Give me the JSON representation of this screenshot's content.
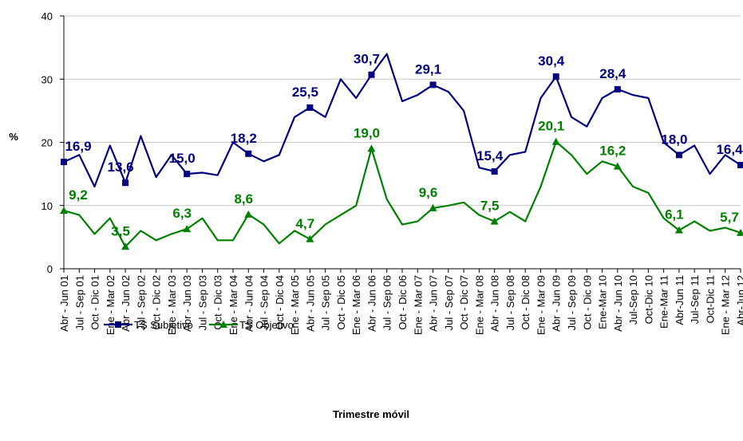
{
  "chart_data": {
    "type": "line",
    "x_label": "Trimestre móvil",
    "y_label": "%",
    "categories": [
      "Abr - Jun 01",
      "Jul - Sep 01",
      "Oct - Dic 01",
      "Ene - Mar 02",
      "Abr - Jun 02",
      "Jul - Sep 02",
      "Oct - Dic 02",
      "Ene - Mar 03",
      "Abr - Jun 03",
      "Jul - Sep 03",
      "Oct - Dic 03",
      "Ene - Mar 04",
      "Abr - Jun 04",
      "Jul - Sep 04",
      "Oct - Dic 04",
      "Ene - Mar 05",
      "Abr - Jun 05",
      "Jul - Sep 05",
      "Oct - Dic 05",
      "Ene - Mar 06",
      "Abr - Jun 06",
      "Jul - Sep 06",
      "Oct - Dic 06",
      "Ene - Mar 07",
      "Abr - Jun 07",
      "Jul - Sep 07",
      "Oct - Dic 07",
      "Ene - Mar 08",
      "Abr - Jun 08",
      "Jul - Sep 08",
      "Oct - Dic 08",
      "Ene - Mar 09",
      "Abr - Jun 09",
      "Jul - Sep 09",
      "Oct - Dic 09",
      "Ene-Mar 10",
      "Abr - Jun 10",
      "Jul-Sep 10",
      "Oct-Dic 10",
      "Ene-Mar 11",
      "Abr-Jun 11",
      "Jul-Sep 11",
      "Oct-Dic 11",
      "Ene - Mar 12",
      "Abr-Jun 12"
    ],
    "series": [
      {
        "name": "TS Subjetivo",
        "color": "#000080",
        "marker": "square",
        "values": [
          16.9,
          18,
          13,
          19.5,
          13.6,
          21,
          14.5,
          18,
          15.0,
          15.2,
          14.8,
          20,
          18.2,
          17,
          18,
          24,
          25.5,
          24,
          30,
          27,
          30.7,
          34,
          26.5,
          27.5,
          29.1,
          28,
          25,
          16,
          15.4,
          18,
          18.5,
          27,
          30.4,
          24,
          22.5,
          27,
          28.4,
          27.5,
          27,
          20,
          18.0,
          19.5,
          15,
          18,
          16.4
        ],
        "value_labels": [
          "16,9",
          null,
          null,
          null,
          "13,6",
          null,
          null,
          null,
          "15,0",
          null,
          null,
          null,
          "18,2",
          null,
          null,
          null,
          "25,5",
          null,
          null,
          null,
          "30,7",
          null,
          null,
          null,
          "29,1",
          null,
          null,
          null,
          "15,4",
          null,
          null,
          null,
          "30,4",
          null,
          null,
          null,
          "28,4",
          null,
          null,
          null,
          "18,0",
          null,
          null,
          null,
          "16,4"
        ]
      },
      {
        "name": "TS Objetivo",
        "color": "#008000",
        "marker": "triangle",
        "values": [
          9.2,
          8.5,
          5.5,
          8,
          3.5,
          6,
          4.5,
          5.5,
          6.3,
          8,
          4.5,
          4.5,
          8.6,
          7,
          4,
          6,
          4.7,
          7,
          8.5,
          10,
          19.0,
          11,
          7,
          7.5,
          9.6,
          10,
          10.5,
          8.5,
          7.5,
          9,
          7.5,
          13,
          20.1,
          18,
          15,
          17,
          16.2,
          13,
          12,
          8,
          6.1,
          7.5,
          6,
          6.5,
          5.7
        ],
        "value_labels": [
          "9,2",
          null,
          null,
          null,
          "3,5",
          null,
          null,
          null,
          "6,3",
          null,
          null,
          null,
          "8,6",
          null,
          null,
          null,
          "4,7",
          null,
          null,
          null,
          "19,0",
          null,
          null,
          null,
          "9,6",
          null,
          null,
          null,
          "7,5",
          null,
          null,
          null,
          "20,1",
          null,
          null,
          null,
          "16,2",
          null,
          null,
          null,
          "6,1",
          null,
          null,
          null,
          "5,7"
        ]
      }
    ],
    "ylim": [
      0,
      40
    ],
    "yticks": [
      0,
      10,
      20,
      30,
      40
    ],
    "grid": true,
    "legend": "bottom"
  }
}
